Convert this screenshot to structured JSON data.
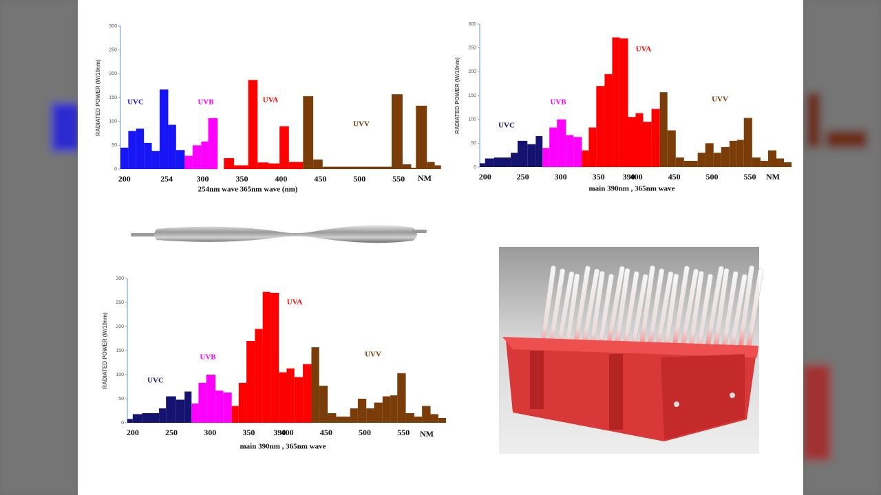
{
  "chart_data": [
    {
      "type": "histogram",
      "ylabel": "RADIATED POWER (W/10nm)",
      "xlabel": "254nm wave    365nm wave  (nm)",
      "x_unit_label": "NM",
      "xlim": [
        195,
        606
      ],
      "ylim": [
        0,
        300
      ],
      "xticks": [
        200,
        254,
        300,
        350,
        400,
        450,
        500,
        550
      ],
      "yticks": [
        0,
        50,
        100,
        150,
        200,
        250,
        300
      ],
      "series": [
        {
          "name": "UVC",
          "color": "#1515f5",
          "bins": [
            195,
            205,
            215,
            225,
            235,
            245,
            256,
            266,
            277
          ],
          "values": [
            45,
            80,
            85,
            55,
            38,
            167,
            93,
            40
          ]
        },
        {
          "name": "UVB",
          "color": "#ff00ff",
          "bins": [
            277,
            287,
            298,
            307,
            319
          ],
          "values": [
            28,
            50,
            58,
            107
          ]
        },
        {
          "name": "UVA",
          "color": "#ff0000",
          "bins": [
            327,
            340,
            358,
            370,
            384,
            398,
            410,
            428
          ],
          "values": [
            23,
            8,
            187,
            14,
            12,
            90,
            15
          ]
        },
        {
          "name": "UVV",
          "color": "#7a3c08",
          "bins": [
            428,
            441,
            453,
            541,
            555,
            566,
            572,
            586,
            596,
            604
          ],
          "values": [
            153,
            20,
            5,
            157,
            10,
            3,
            133,
            15,
            8
          ]
        }
      ]
    },
    {
      "type": "histogram",
      "ylabel": "RADIATED POWER (W/10nm)",
      "xlabel": "main 390nm , 365nm wave",
      "x_unit_label": "NM",
      "xlim": [
        193,
        605
      ],
      "ylim": [
        0,
        300
      ],
      "xticks": [
        200,
        250,
        300,
        350,
        390,
        400,
        450,
        500,
        550
      ],
      "yticks": [
        0,
        50,
        100,
        150,
        200,
        250,
        300
      ],
      "series": [
        {
          "name": "UVC",
          "color": "#141470",
          "bins": [
            193,
            200,
            212,
            234,
            243,
            256,
            267,
            276
          ],
          "values": [
            8,
            18,
            20,
            30,
            55,
            48,
            65
          ]
        },
        {
          "name": "UVB",
          "color": "#ff00ff",
          "bins": [
            276,
            285,
            295,
            307,
            317,
            328
          ],
          "values": [
            40,
            83,
            100,
            67,
            63
          ]
        },
        {
          "name": "UVA",
          "color": "#ff0000",
          "bins": [
            328,
            337,
            347,
            358,
            368,
            378,
            389,
            399,
            409,
            420,
            431
          ],
          "values": [
            35,
            83,
            170,
            195,
            272,
            270,
            105,
            113,
            95,
            122
          ]
        },
        {
          "name": "UVV",
          "color": "#7a3c08",
          "bins": [
            431,
            441,
            452,
            463,
            481,
            491,
            502,
            512,
            523,
            533,
            542,
            553,
            564,
            574,
            585,
            595,
            605
          ],
          "values": [
            157,
            77,
            20,
            13,
            30,
            50,
            30,
            42,
            55,
            57,
            103,
            20,
            13,
            35,
            18,
            10
          ]
        }
      ]
    },
    {
      "type": "histogram",
      "ylabel": "RADIATED POWER (W/10nm)",
      "xlabel": "main 390nm , 365nm wave",
      "x_unit_label": "NM",
      "xlim": [
        193,
        605
      ],
      "ylim": [
        0,
        300
      ],
      "xticks": [
        200,
        250,
        300,
        350,
        390,
        400,
        450,
        500,
        550
      ],
      "yticks": [
        0,
        50,
        100,
        150,
        200,
        250,
        300
      ],
      "series": [
        {
          "name": "UVC",
          "color": "#141470",
          "bins": [
            193,
            200,
            212,
            234,
            243,
            256,
            267,
            276
          ],
          "values": [
            8,
            18,
            20,
            30,
            55,
            48,
            65
          ]
        },
        {
          "name": "UVB",
          "color": "#ff00ff",
          "bins": [
            276,
            285,
            295,
            307,
            317,
            328
          ],
          "values": [
            40,
            83,
            100,
            67,
            63
          ]
        },
        {
          "name": "UVA",
          "color": "#ff0000",
          "bins": [
            328,
            337,
            347,
            358,
            368,
            378,
            389,
            399,
            409,
            420,
            431
          ],
          "values": [
            35,
            83,
            170,
            195,
            272,
            270,
            105,
            113,
            95,
            122
          ]
        },
        {
          "name": "UVV",
          "color": "#7a3c08",
          "bins": [
            431,
            441,
            452,
            463,
            481,
            491,
            502,
            512,
            523,
            533,
            542,
            553,
            564,
            574,
            585,
            595,
            605
          ],
          "values": [
            157,
            77,
            20,
            13,
            30,
            50,
            30,
            42,
            55,
            57,
            103,
            20,
            13,
            35,
            18,
            10
          ]
        }
      ]
    }
  ]
}
